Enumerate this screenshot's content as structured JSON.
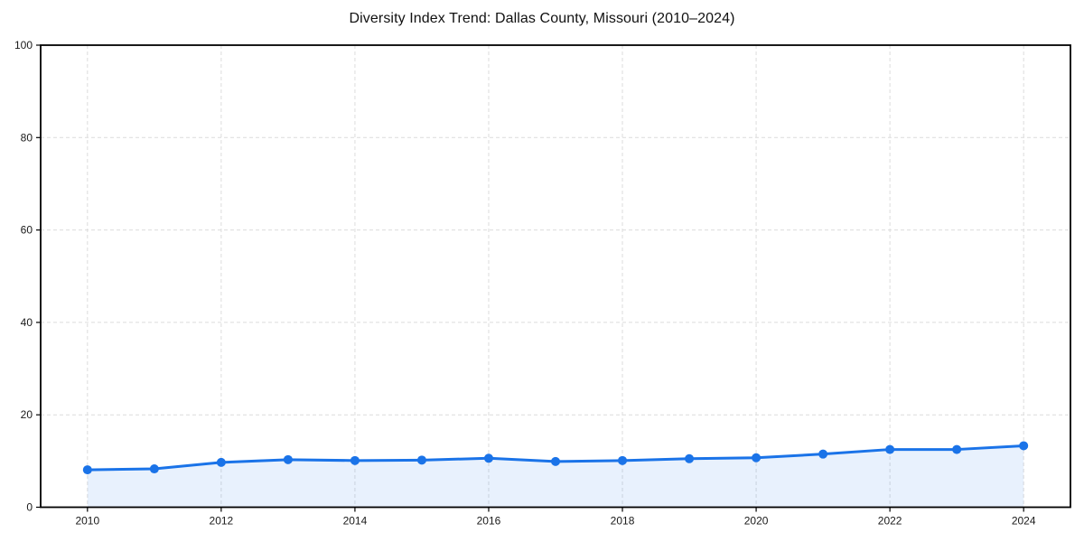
{
  "chart_data": {
    "type": "area",
    "title": "Diversity Index Trend: Dallas County, Missouri (2010–2024)",
    "x": [
      2010,
      2011,
      2012,
      2013,
      2014,
      2015,
      2016,
      2017,
      2018,
      2019,
      2020,
      2021,
      2022,
      2023,
      2024
    ],
    "series": [
      {
        "name": "Diversity Index",
        "values": [
          8.1,
          8.3,
          9.7,
          10.3,
          10.1,
          10.2,
          10.6,
          9.9,
          10.1,
          10.5,
          10.7,
          11.5,
          12.5,
          12.5,
          13.3
        ]
      }
    ],
    "xlabel": "",
    "ylabel": "",
    "xlim": [
      2009.3,
      2024.7
    ],
    "ylim": [
      0,
      100
    ],
    "xticks": [
      2010,
      2012,
      2014,
      2016,
      2018,
      2020,
      2022,
      2024
    ],
    "yticks": [
      0,
      20,
      40,
      60,
      80,
      100
    ],
    "grid": true,
    "grid_style": "dashed",
    "legend": false,
    "line_color": "#1a73e8",
    "marker": "circle",
    "fill_color": "#1a73e8",
    "fill_opacity": 0.1,
    "grid_color": "#dcdcdc",
    "axis_color": "#000000",
    "tick_label_color": "#1a1a1a",
    "title_color": "#111111"
  }
}
